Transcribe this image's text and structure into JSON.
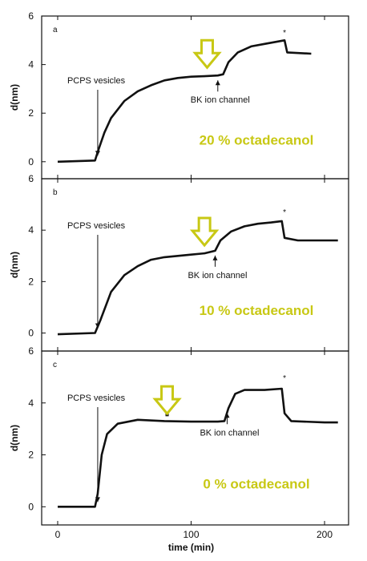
{
  "chart_data": {
    "type": "line",
    "xlabel": "time (min)",
    "ylabel": "d(nm)",
    "xlim": [
      -12,
      218
    ],
    "x_ticks": [
      0,
      100,
      200
    ],
    "y_ticks": [
      0,
      2,
      4,
      6
    ],
    "accent_color": "#c8c814",
    "panels": [
      {
        "letter": "a",
        "condition": "20 % octadecanol",
        "ylim": [
          -0.7,
          6
        ],
        "points": [
          [
            0,
            0
          ],
          [
            28,
            0.05
          ],
          [
            30,
            0.4
          ],
          [
            35,
            1.2
          ],
          [
            40,
            1.8
          ],
          [
            50,
            2.5
          ],
          [
            60,
            2.9
          ],
          [
            70,
            3.15
          ],
          [
            80,
            3.35
          ],
          [
            90,
            3.45
          ],
          [
            100,
            3.5
          ],
          [
            110,
            3.52
          ],
          [
            120,
            3.55
          ],
          [
            124,
            3.6
          ],
          [
            128,
            4.1
          ],
          [
            135,
            4.5
          ],
          [
            145,
            4.75
          ],
          [
            155,
            4.85
          ],
          [
            165,
            4.95
          ],
          [
            170,
            5.0
          ],
          [
            172,
            4.5
          ],
          [
            190,
            4.45
          ]
        ],
        "vesicle_label": "PCPS vesicles",
        "vesicle_x": 30,
        "channel_label": "BK ion channel",
        "channel_x": 120,
        "star_x": 170,
        "star_y": 5.2,
        "yellow_arrow_x": 112
      },
      {
        "letter": "b",
        "condition": "10 % octadecanol",
        "ylim": [
          -0.7,
          6
        ],
        "points": [
          [
            0,
            -0.05
          ],
          [
            28,
            0
          ],
          [
            32,
            0.5
          ],
          [
            40,
            1.6
          ],
          [
            50,
            2.25
          ],
          [
            60,
            2.6
          ],
          [
            70,
            2.85
          ],
          [
            80,
            2.95
          ],
          [
            90,
            3.0
          ],
          [
            100,
            3.05
          ],
          [
            110,
            3.1
          ],
          [
            118,
            3.2
          ],
          [
            122,
            3.6
          ],
          [
            130,
            3.95
          ],
          [
            140,
            4.15
          ],
          [
            150,
            4.25
          ],
          [
            160,
            4.3
          ],
          [
            168,
            4.35
          ],
          [
            170,
            3.7
          ],
          [
            180,
            3.6
          ],
          [
            210,
            3.6
          ]
        ],
        "vesicle_label": "PCPS vesicles",
        "vesicle_x": 30,
        "channel_label": "BK ion channel",
        "channel_x": 118,
        "star_x": 170,
        "star_y": 4.6,
        "yellow_arrow_x": 110
      },
      {
        "letter": "c",
        "condition": "0 % octadecanol",
        "ylim": [
          -0.7,
          6
        ],
        "points": [
          [
            0,
            0
          ],
          [
            28,
            0
          ],
          [
            30,
            0.5
          ],
          [
            33,
            2.0
          ],
          [
            37,
            2.8
          ],
          [
            45,
            3.2
          ],
          [
            60,
            3.35
          ],
          [
            80,
            3.3
          ],
          [
            100,
            3.28
          ],
          [
            120,
            3.28
          ],
          [
            125,
            3.3
          ],
          [
            128,
            3.8
          ],
          [
            133,
            4.35
          ],
          [
            140,
            4.5
          ],
          [
            155,
            4.5
          ],
          [
            168,
            4.55
          ],
          [
            170,
            3.6
          ],
          [
            175,
            3.3
          ],
          [
            200,
            3.25
          ],
          [
            210,
            3.25
          ]
        ],
        "vesicle_label": "PCPS vesicles",
        "vesicle_x": 30,
        "channel_label": "BK ion channel",
        "channel_x": 127,
        "star_x": 170,
        "star_y": 4.85,
        "mark_x": 82,
        "mark_y": 3.55,
        "yellow_arrow_x": 82
      }
    ]
  }
}
